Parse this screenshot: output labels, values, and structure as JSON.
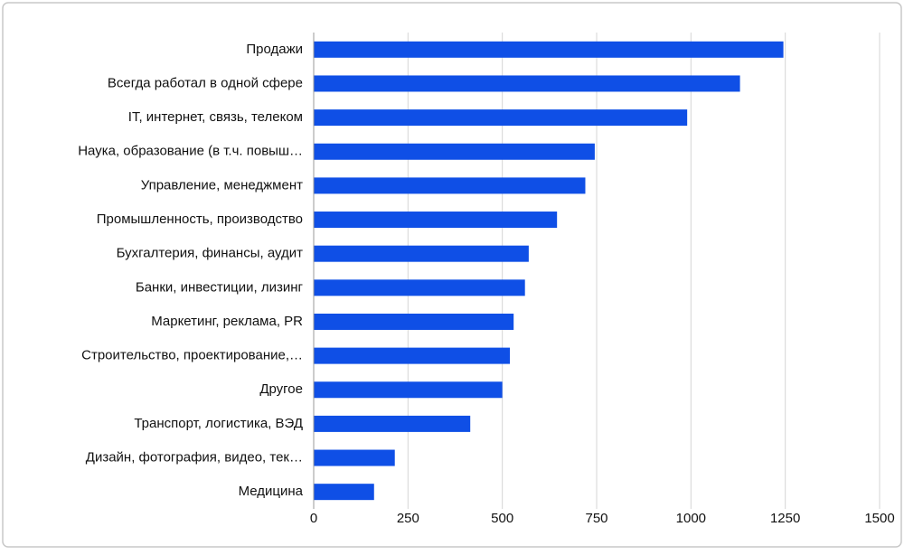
{
  "chart_data": {
    "type": "hbar",
    "categories": [
      "Продажи",
      "Всегда работал в одной сфере",
      "IT, интернет, связь, телеком",
      "Наука, образование (в т.ч. повыш…",
      "Управление, менеджмент",
      "Промышленность, производство",
      "Бухгалтерия, финансы, аудит",
      "Банки, инвестиции, лизинг",
      "Маркетинг, реклама, PR",
      "Строительство, проектирование,…",
      "Другое",
      "Транспорт, логистика, ВЭД",
      "Дизайн, фотография, видео, тек…",
      "Медицина"
    ],
    "values": [
      1245,
      1130,
      990,
      745,
      720,
      645,
      570,
      560,
      530,
      520,
      500,
      415,
      215,
      160
    ],
    "color": "#0f4fe6",
    "xlim": [
      0,
      1500
    ],
    "xticks": [
      0,
      250,
      500,
      750,
      1000,
      1250,
      1500
    ],
    "grid": true
  }
}
